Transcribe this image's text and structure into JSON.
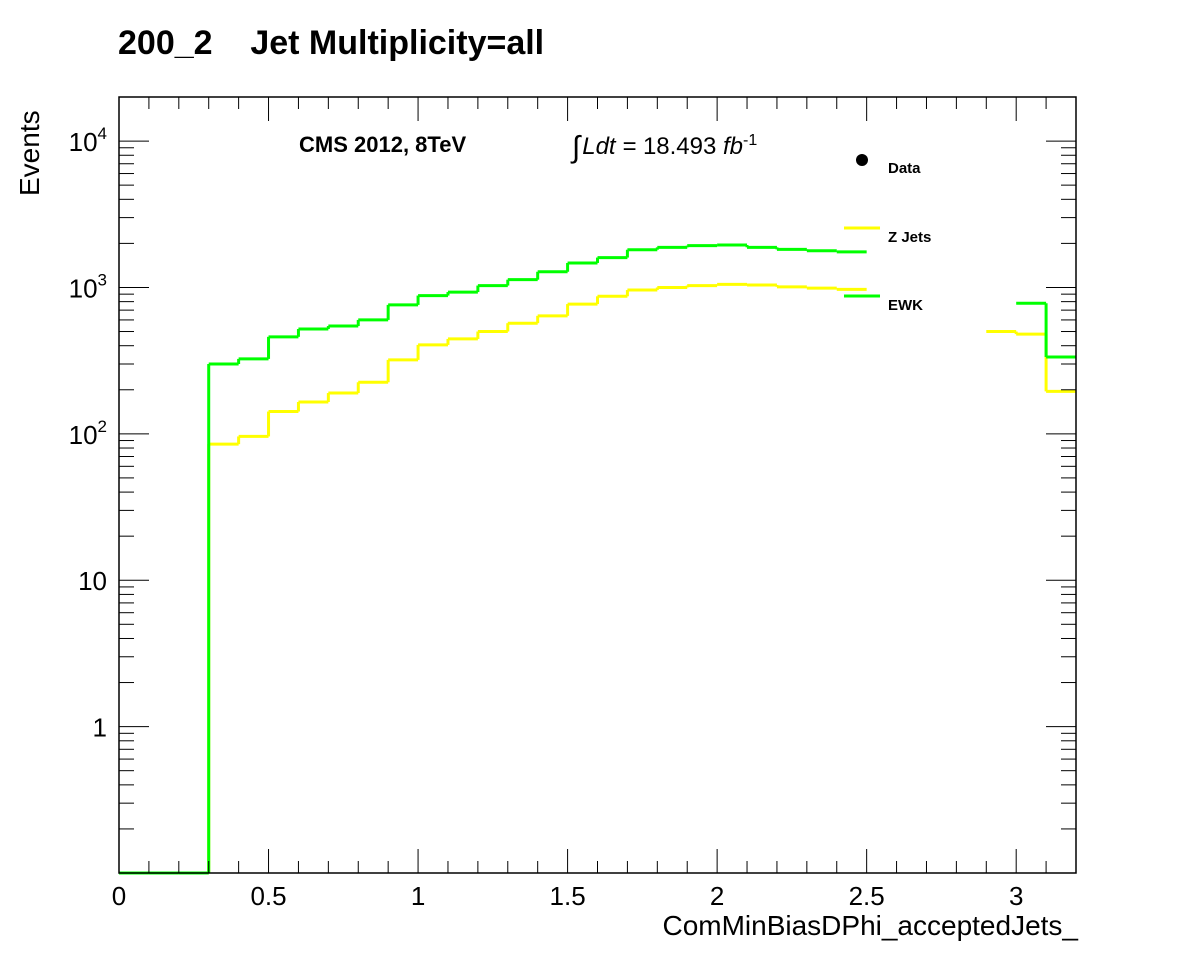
{
  "chart_data": {
    "type": "line",
    "title": "200_2    Jet Multiplicity=all",
    "xlabel": "ComMinBiasDPhi_acceptedJets_",
    "ylabel": "Events",
    "xlim": [
      0,
      3.2
    ],
    "ylim": [
      0.1,
      20000
    ],
    "yscale": "log",
    "grid": false,
    "x_ticks": [
      {
        "value": 0,
        "label": "0"
      },
      {
        "value": 0.5,
        "label": "0.5"
      },
      {
        "value": 1,
        "label": "1"
      },
      {
        "value": 1.5,
        "label": "1.5"
      },
      {
        "value": 2,
        "label": "2"
      },
      {
        "value": 2.5,
        "label": "2.5"
      },
      {
        "value": 3,
        "label": "3"
      }
    ],
    "y_ticks": [
      {
        "value": 1,
        "label": "1"
      },
      {
        "value": 10,
        "label": "10"
      },
      {
        "value": 100,
        "label": "10",
        "exp": "2"
      },
      {
        "value": 1000,
        "label": "10",
        "exp": "3"
      },
      {
        "value": 10000,
        "label": "10",
        "exp": "4"
      }
    ],
    "bin_edges": [
      0,
      0.1,
      0.2,
      0.3,
      0.4,
      0.5,
      0.6,
      0.7,
      0.8,
      0.9,
      1.0,
      1.1,
      1.2,
      1.3,
      1.4,
      1.5,
      1.6,
      1.7,
      1.8,
      1.9,
      2.0,
      2.1,
      2.2,
      2.3,
      2.4,
      2.5,
      2.6,
      2.7,
      2.8,
      2.9,
      3.0,
      3.1,
      3.2
    ],
    "series": [
      {
        "name": "Z Jets",
        "color": "#ffff00",
        "values": [
          0,
          0,
          0,
          85,
          96,
          142,
          165,
          190,
          225,
          320,
          405,
          445,
          500,
          570,
          640,
          770,
          870,
          960,
          1000,
          1030,
          1050,
          1040,
          1010,
          990,
          970,
          null,
          null,
          null,
          null,
          500,
          480,
          195
        ]
      },
      {
        "name": "EWK",
        "color": "#00ff00",
        "values": [
          0,
          0,
          0,
          300,
          325,
          460,
          520,
          545,
          600,
          760,
          880,
          930,
          1030,
          1130,
          1280,
          1470,
          1600,
          1810,
          1880,
          1930,
          1950,
          1880,
          1820,
          1780,
          1750,
          null,
          null,
          null,
          null,
          null,
          780,
          335
        ]
      }
    ],
    "legend": {
      "placement": "top-right",
      "entries": [
        {
          "label": "Data",
          "marker": "point",
          "color": "#000000"
        },
        {
          "label": "Z Jets",
          "marker": "line",
          "color": "#ffff00"
        },
        {
          "label": "EWK",
          "marker": "line",
          "color": "#00ff00"
        }
      ]
    },
    "annotations": {
      "experiment": "CMS 2012, 8TeV",
      "lumi_prefix": "Ldt =",
      "lumi_value": "18.493",
      "lumi_unit": "fb",
      "lumi_exp": "-1"
    }
  }
}
